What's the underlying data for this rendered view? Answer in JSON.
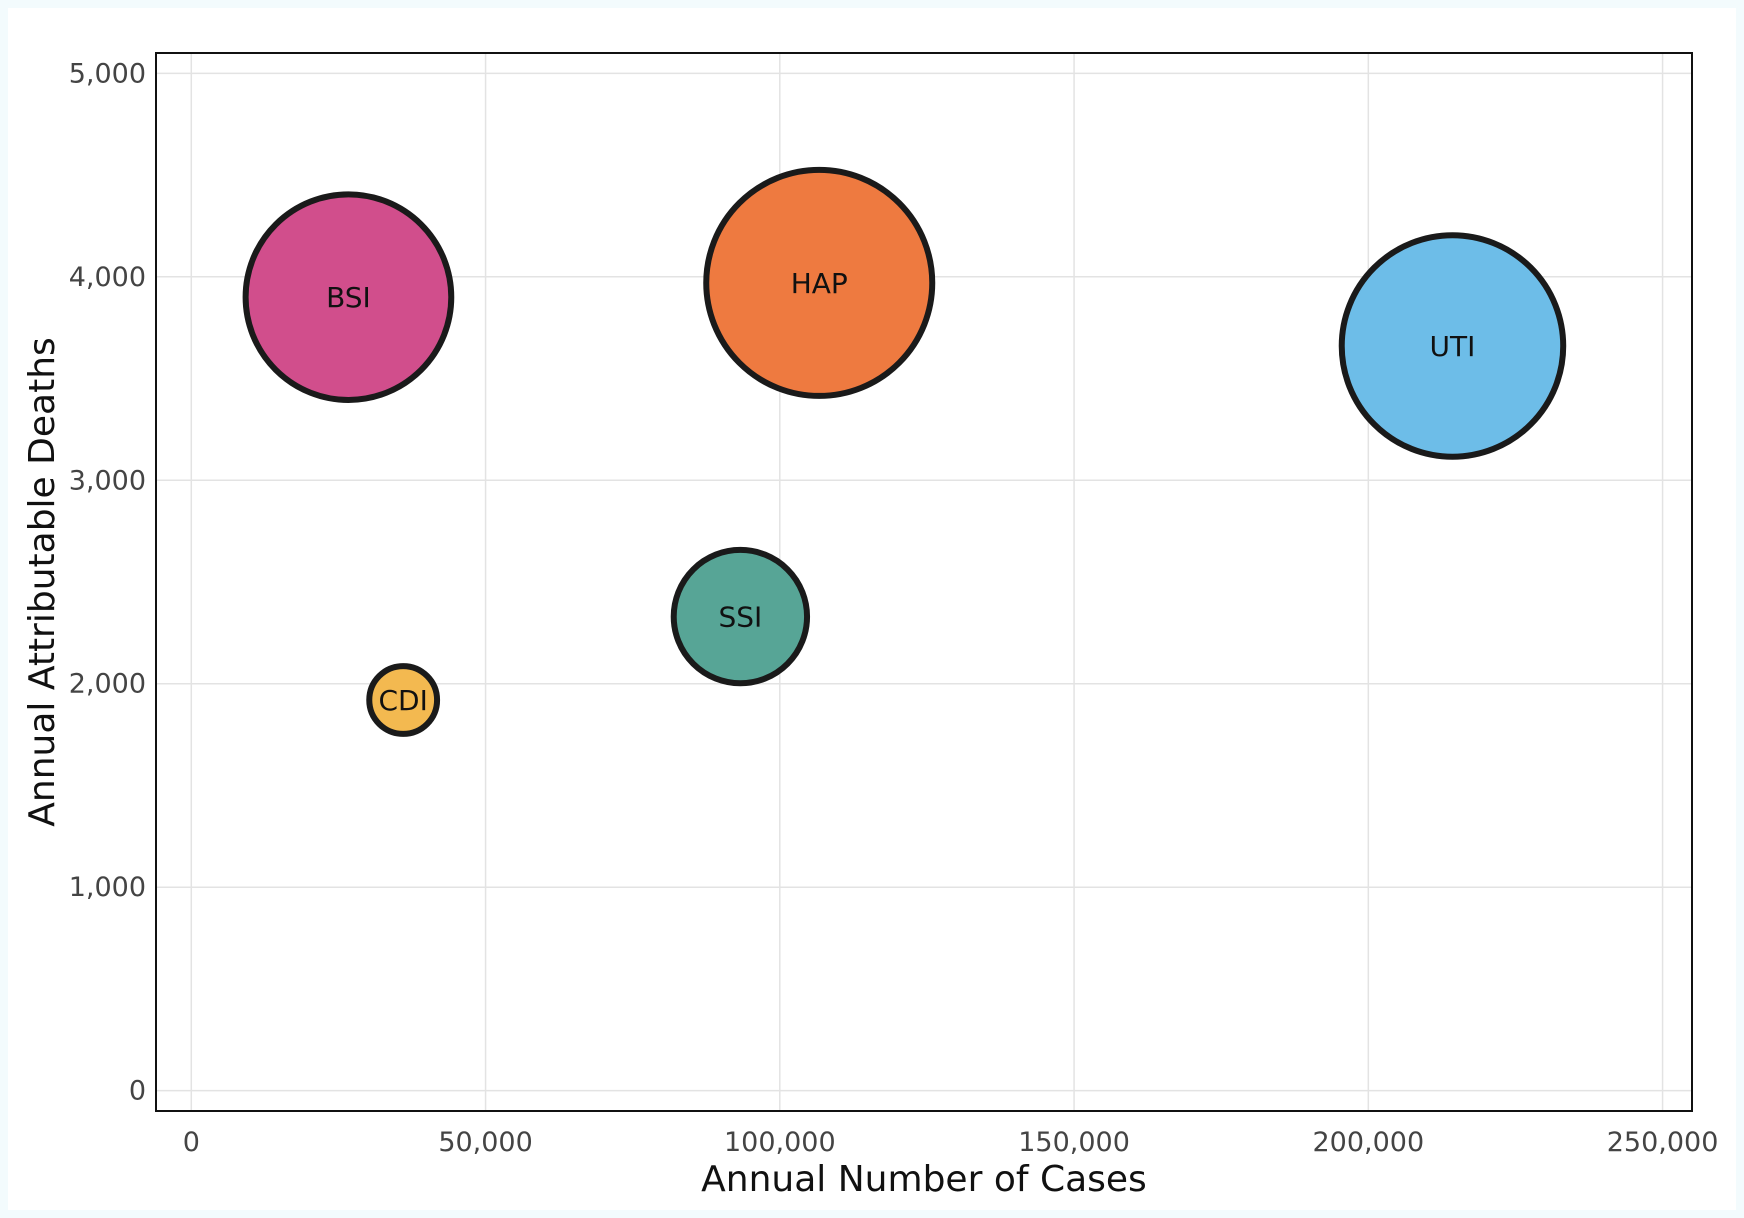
{
  "chart_data": {
    "type": "scatter",
    "subtype": "bubble",
    "title": "",
    "xlabel": "Annual Number of Cases",
    "ylabel": "Annual Attributable Deaths",
    "xlim": [
      -6000,
      255000
    ],
    "ylim": [
      -100,
      5100
    ],
    "xticks": [
      0,
      50000,
      100000,
      150000,
      200000,
      250000
    ],
    "xtick_labels": [
      "0",
      "50,000",
      "100,000",
      "150,000",
      "200,000",
      "250,000"
    ],
    "yticks": [
      0,
      1000,
      2000,
      3000,
      4000,
      5000
    ],
    "ytick_labels": [
      "0",
      "1,000",
      "2,000",
      "3,000",
      "4,000",
      "5,000"
    ],
    "grid": true,
    "legend": false,
    "points": [
      {
        "label": "BSI",
        "x": 26700,
        "y": 3900,
        "relative_size": 0.91,
        "color": "#d14e8c"
      },
      {
        "label": "HAP",
        "x": 106700,
        "y": 3970,
        "relative_size": 1.0,
        "color": "#ee7a40"
      },
      {
        "label": "UTI",
        "x": 214300,
        "y": 3660,
        "relative_size": 0.98,
        "color": "#6dbde8"
      },
      {
        "label": "SSI",
        "x": 93300,
        "y": 2330,
        "relative_size": 0.59,
        "color": "#57a596"
      },
      {
        "label": "CDI",
        "x": 36000,
        "y": 1920,
        "relative_size": 0.3,
        "color": "#f3b950"
      }
    ]
  }
}
